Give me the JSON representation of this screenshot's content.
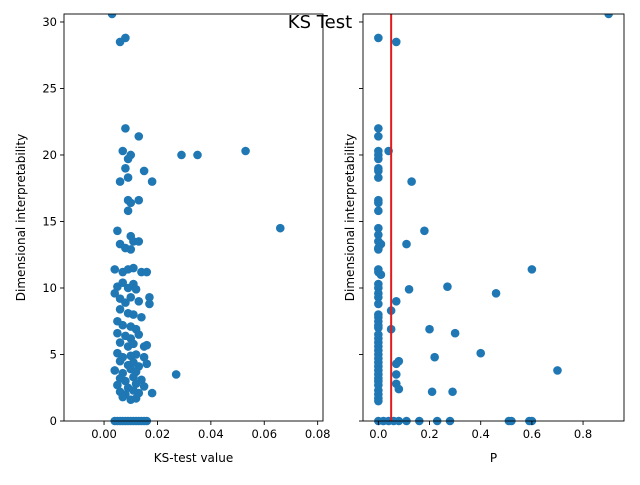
{
  "figure_title": "KS Test",
  "chart_data": [
    {
      "type": "scatter",
      "xlabel": "KS-test value",
      "ylabel": "Dimensional interpretability",
      "xlim": [
        -0.015,
        0.082
      ],
      "ylim": [
        0,
        30.6
      ],
      "x_ticks": [
        "0.00",
        "0.02",
        "0.04",
        "0.06",
        "0.08"
      ],
      "x_tick_values": [
        0,
        0.02,
        0.04,
        0.06,
        0.08
      ],
      "y_ticks": [
        "0",
        "5",
        "10",
        "15",
        "20",
        "25",
        "30"
      ],
      "y_tick_values": [
        0,
        5,
        10,
        15,
        20,
        25,
        30
      ],
      "color": "#1f77b4",
      "points": [
        [
          0.003,
          30.6
        ],
        [
          0.008,
          28.8
        ],
        [
          0.006,
          28.5
        ],
        [
          0.008,
          22.0
        ],
        [
          0.013,
          21.4
        ],
        [
          0.007,
          20.3
        ],
        [
          0.01,
          20.0
        ],
        [
          0.009,
          19.7
        ],
        [
          0.029,
          20.0
        ],
        [
          0.035,
          20.0
        ],
        [
          0.053,
          20.3
        ],
        [
          0.008,
          19.0
        ],
        [
          0.015,
          18.8
        ],
        [
          0.006,
          18.0
        ],
        [
          0.009,
          18.3
        ],
        [
          0.018,
          18.0
        ],
        [
          0.009,
          16.6
        ],
        [
          0.01,
          16.4
        ],
        [
          0.013,
          16.6
        ],
        [
          0.009,
          15.8
        ],
        [
          0.066,
          14.5
        ],
        [
          0.005,
          14.3
        ],
        [
          0.006,
          13.3
        ],
        [
          0.008,
          13.0
        ],
        [
          0.01,
          13.9
        ],
        [
          0.011,
          13.5
        ],
        [
          0.013,
          13.5
        ],
        [
          0.01,
          12.9
        ],
        [
          0.004,
          11.4
        ],
        [
          0.007,
          11.2
        ],
        [
          0.009,
          11.4
        ],
        [
          0.011,
          11.5
        ],
        [
          0.014,
          11.2
        ],
        [
          0.016,
          11.2
        ],
        [
          0.005,
          10.1
        ],
        [
          0.007,
          10.4
        ],
        [
          0.009,
          10.0
        ],
        [
          0.011,
          10.3
        ],
        [
          0.012,
          9.9
        ],
        [
          0.004,
          9.6
        ],
        [
          0.006,
          9.2
        ],
        [
          0.008,
          8.9
        ],
        [
          0.01,
          9.3
        ],
        [
          0.013,
          9.0
        ],
        [
          0.017,
          9.3
        ],
        [
          0.017,
          8.8
        ],
        [
          0.006,
          8.4
        ],
        [
          0.009,
          8.1
        ],
        [
          0.011,
          8.0
        ],
        [
          0.014,
          7.8
        ],
        [
          0.005,
          7.5
        ],
        [
          0.007,
          7.2
        ],
        [
          0.01,
          7.1
        ],
        [
          0.012,
          6.9
        ],
        [
          0.005,
          6.6
        ],
        [
          0.008,
          6.4
        ],
        [
          0.01,
          6.2
        ],
        [
          0.013,
          6.5
        ],
        [
          0.006,
          5.9
        ],
        [
          0.009,
          5.6
        ],
        [
          0.011,
          5.8
        ],
        [
          0.015,
          5.6
        ],
        [
          0.016,
          5.7
        ],
        [
          0.005,
          5.1
        ],
        [
          0.007,
          4.8
        ],
        [
          0.01,
          4.9
        ],
        [
          0.012,
          5.0
        ],
        [
          0.015,
          4.8
        ],
        [
          0.006,
          4.5
        ],
        [
          0.009,
          4.2
        ],
        [
          0.011,
          4.4
        ],
        [
          0.013,
          4.1
        ],
        [
          0.016,
          4.3
        ],
        [
          0.004,
          3.8
        ],
        [
          0.007,
          3.6
        ],
        [
          0.01,
          3.9
        ],
        [
          0.012,
          3.7
        ],
        [
          0.027,
          3.5
        ],
        [
          0.006,
          3.2
        ],
        [
          0.008,
          3.0
        ],
        [
          0.011,
          3.3
        ],
        [
          0.014,
          3.1
        ],
        [
          0.005,
          2.7
        ],
        [
          0.009,
          2.5
        ],
        [
          0.012,
          2.8
        ],
        [
          0.015,
          2.6
        ],
        [
          0.006,
          2.2
        ],
        [
          0.008,
          2.0
        ],
        [
          0.011,
          2.3
        ],
        [
          0.013,
          2.1
        ],
        [
          0.018,
          2.1
        ],
        [
          0.007,
          1.8
        ],
        [
          0.01,
          1.6
        ],
        [
          0.012,
          1.7
        ],
        [
          0.004,
          0.0
        ],
        [
          0.005,
          0.0
        ],
        [
          0.006,
          0.0
        ],
        [
          0.007,
          0.0
        ],
        [
          0.008,
          0.0
        ],
        [
          0.009,
          0.0
        ],
        [
          0.01,
          0.0
        ],
        [
          0.011,
          0.0
        ],
        [
          0.012,
          0.0
        ],
        [
          0.013,
          0.0
        ],
        [
          0.014,
          0.0
        ],
        [
          0.015,
          0.0
        ],
        [
          0.016,
          0.0
        ]
      ]
    },
    {
      "type": "scatter",
      "xlabel": "P",
      "ylabel": "Dimensional interpretability",
      "xlim": [
        -0.06,
        0.96
      ],
      "ylim": [
        0,
        30.6
      ],
      "x_ticks": [
        "0.0",
        "0.2",
        "0.4",
        "0.6",
        "0.8"
      ],
      "x_tick_values": [
        0,
        0.2,
        0.4,
        0.6,
        0.8
      ],
      "y_ticks": [
        "0",
        "5",
        "10",
        "15",
        "20",
        "25",
        "30"
      ],
      "y_tick_values": [
        0,
        5,
        10,
        15,
        20,
        25,
        30
      ],
      "color": "#1f77b4",
      "vline": {
        "x": 0.05,
        "color": "#e31a1c"
      },
      "points": [
        [
          0.9,
          30.6
        ],
        [
          0.0,
          28.8
        ],
        [
          0.07,
          28.5
        ],
        [
          0.0,
          22.0
        ],
        [
          0.0,
          21.4
        ],
        [
          0.0,
          20.3
        ],
        [
          0.04,
          20.3
        ],
        [
          0.0,
          20.0
        ],
        [
          0.0,
          19.7
        ],
        [
          0.0,
          19.0
        ],
        [
          0.0,
          18.8
        ],
        [
          0.13,
          18.0
        ],
        [
          0.0,
          18.3
        ],
        [
          0.0,
          16.6
        ],
        [
          0.0,
          16.4
        ],
        [
          0.0,
          15.8
        ],
        [
          0.0,
          14.5
        ],
        [
          0.18,
          14.3
        ],
        [
          0.0,
          14.0
        ],
        [
          0.0,
          13.5
        ],
        [
          0.01,
          13.3
        ],
        [
          0.11,
          13.3
        ],
        [
          0.0,
          13.0
        ],
        [
          0.0,
          12.9
        ],
        [
          0.6,
          11.4
        ],
        [
          0.0,
          11.4
        ],
        [
          0.0,
          11.2
        ],
        [
          0.01,
          11.0
        ],
        [
          0.27,
          10.1
        ],
        [
          0.0,
          10.3
        ],
        [
          0.0,
          10.0
        ],
        [
          0.12,
          9.9
        ],
        [
          0.46,
          9.6
        ],
        [
          0.0,
          9.6
        ],
        [
          0.0,
          9.3
        ],
        [
          0.07,
          9.0
        ],
        [
          0.0,
          8.8
        ],
        [
          0.05,
          8.3
        ],
        [
          0.0,
          8.0
        ],
        [
          0.0,
          7.8
        ],
        [
          0.0,
          7.5
        ],
        [
          0.0,
          7.2
        ],
        [
          0.0,
          7.0
        ],
        [
          0.2,
          6.9
        ],
        [
          0.05,
          6.9
        ],
        [
          0.3,
          6.6
        ],
        [
          0.0,
          6.5
        ],
        [
          0.0,
          6.2
        ],
        [
          0.0,
          5.9
        ],
        [
          0.0,
          5.6
        ],
        [
          0.0,
          5.3
        ],
        [
          0.4,
          5.1
        ],
        [
          0.22,
          4.8
        ],
        [
          0.0,
          5.0
        ],
        [
          0.0,
          4.7
        ],
        [
          0.08,
          4.5
        ],
        [
          0.07,
          4.3
        ],
        [
          0.0,
          4.4
        ],
        [
          0.0,
          4.1
        ],
        [
          0.7,
          3.8
        ],
        [
          0.0,
          3.8
        ],
        [
          0.07,
          3.5
        ],
        [
          0.0,
          3.5
        ],
        [
          0.0,
          3.2
        ],
        [
          0.0,
          3.0
        ],
        [
          0.07,
          2.8
        ],
        [
          0.0,
          2.7
        ],
        [
          0.08,
          2.4
        ],
        [
          0.21,
          2.2
        ],
        [
          0.29,
          2.2
        ],
        [
          0.0,
          2.3
        ],
        [
          0.0,
          2.0
        ],
        [
          0.0,
          1.7
        ],
        [
          0.0,
          1.5
        ],
        [
          0.0,
          0.0
        ],
        [
          0.02,
          0.0
        ],
        [
          0.04,
          0.0
        ],
        [
          0.06,
          0.0
        ],
        [
          0.08,
          0.0
        ],
        [
          0.11,
          0.0
        ],
        [
          0.16,
          0.0
        ],
        [
          0.23,
          0.0
        ],
        [
          0.28,
          0.0
        ],
        [
          0.51,
          0.0
        ],
        [
          0.52,
          0.0
        ],
        [
          0.59,
          0.0
        ],
        [
          0.6,
          0.0
        ]
      ]
    }
  ]
}
